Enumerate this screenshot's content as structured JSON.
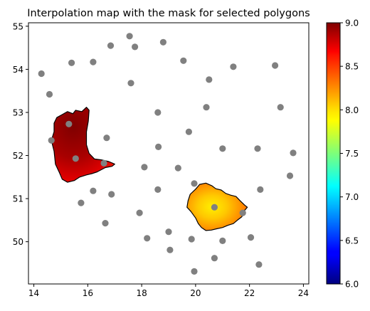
{
  "chart_data": {
    "type": "scatter",
    "title": "Interpolation map with the mask for selected polygons",
    "xlabel": "",
    "ylabel": "",
    "xlim": [
      13.8,
      24.2
    ],
    "ylim": [
      49.02,
      55.08
    ],
    "xticks": [
      14,
      16,
      18,
      20,
      22,
      24
    ],
    "yticks": [
      50,
      51,
      52,
      53,
      54,
      55
    ],
    "grid": false,
    "point_color": "#808080",
    "points": [
      {
        "x": 14.28,
        "y": 53.9
      },
      {
        "x": 14.58,
        "y": 53.42
      },
      {
        "x": 15.4,
        "y": 54.15
      },
      {
        "x": 16.2,
        "y": 54.17
      },
      {
        "x": 16.85,
        "y": 54.55
      },
      {
        "x": 17.55,
        "y": 54.77
      },
      {
        "x": 17.75,
        "y": 54.52
      },
      {
        "x": 18.8,
        "y": 54.63
      },
      {
        "x": 19.55,
        "y": 54.2
      },
      {
        "x": 21.4,
        "y": 54.06
      },
      {
        "x": 22.95,
        "y": 54.09
      },
      {
        "x": 17.6,
        "y": 53.68
      },
      {
        "x": 20.5,
        "y": 53.76
      },
      {
        "x": 18.6,
        "y": 53.0
      },
      {
        "x": 20.4,
        "y": 53.12
      },
      {
        "x": 23.15,
        "y": 53.12
      },
      {
        "x": 15.3,
        "y": 52.73
      },
      {
        "x": 16.7,
        "y": 52.41
      },
      {
        "x": 19.75,
        "y": 52.55
      },
      {
        "x": 14.65,
        "y": 52.35
      },
      {
        "x": 18.62,
        "y": 52.2
      },
      {
        "x": 21.0,
        "y": 52.16
      },
      {
        "x": 22.3,
        "y": 52.16
      },
      {
        "x": 23.62,
        "y": 52.06
      },
      {
        "x": 15.55,
        "y": 51.93
      },
      {
        "x": 16.6,
        "y": 51.82
      },
      {
        "x": 18.1,
        "y": 51.73
      },
      {
        "x": 19.35,
        "y": 51.71
      },
      {
        "x": 23.5,
        "y": 51.53
      },
      {
        "x": 19.95,
        "y": 51.35
      },
      {
        "x": 16.2,
        "y": 51.18
      },
      {
        "x": 16.88,
        "y": 51.1
      },
      {
        "x": 18.6,
        "y": 51.21
      },
      {
        "x": 22.4,
        "y": 51.21
      },
      {
        "x": 15.75,
        "y": 50.9
      },
      {
        "x": 20.7,
        "y": 50.8
      },
      {
        "x": 17.92,
        "y": 50.67
      },
      {
        "x": 21.75,
        "y": 50.67
      },
      {
        "x": 16.65,
        "y": 50.43
      },
      {
        "x": 18.2,
        "y": 50.08
      },
      {
        "x": 19.0,
        "y": 50.23
      },
      {
        "x": 19.85,
        "y": 50.06
      },
      {
        "x": 21.0,
        "y": 50.02
      },
      {
        "x": 22.05,
        "y": 50.1
      },
      {
        "x": 19.05,
        "y": 49.81
      },
      {
        "x": 20.7,
        "y": 49.62
      },
      {
        "x": 22.35,
        "y": 49.47
      },
      {
        "x": 19.95,
        "y": 49.31
      }
    ],
    "masked_regions": [
      {
        "value_range": [
          8.6,
          9.0
        ],
        "polygon": [
          [
            14.85,
            52.88
          ],
          [
            15.05,
            52.95
          ],
          [
            15.25,
            53.02
          ],
          [
            15.45,
            52.97
          ],
          [
            15.55,
            53.05
          ],
          [
            15.78,
            53.02
          ],
          [
            15.95,
            53.12
          ],
          [
            16.05,
            53.05
          ],
          [
            16.02,
            52.8
          ],
          [
            15.95,
            52.55
          ],
          [
            15.95,
            52.25
          ],
          [
            16.05,
            52.05
          ],
          [
            16.25,
            51.92
          ],
          [
            16.5,
            51.9
          ],
          [
            16.78,
            51.86
          ],
          [
            17.0,
            51.8
          ],
          [
            16.9,
            51.75
          ],
          [
            16.65,
            51.72
          ],
          [
            16.35,
            51.62
          ],
          [
            16.15,
            51.58
          ],
          [
            15.95,
            51.55
          ],
          [
            15.7,
            51.5
          ],
          [
            15.5,
            51.42
          ],
          [
            15.25,
            51.38
          ],
          [
            15.05,
            51.45
          ],
          [
            14.95,
            51.6
          ],
          [
            14.8,
            51.8
          ],
          [
            14.75,
            52.1
          ],
          [
            14.65,
            52.35
          ],
          [
            14.75,
            52.55
          ],
          [
            14.75,
            52.75
          ]
        ]
      },
      {
        "value_range": [
          7.9,
          8.6
        ],
        "polygon": [
          [
            19.8,
            51.1
          ],
          [
            20.0,
            51.22
          ],
          [
            20.15,
            51.33
          ],
          [
            20.38,
            51.36
          ],
          [
            20.6,
            51.3
          ],
          [
            20.75,
            51.23
          ],
          [
            20.95,
            51.2
          ],
          [
            21.12,
            51.12
          ],
          [
            21.3,
            51.08
          ],
          [
            21.5,
            51.05
          ],
          [
            21.65,
            50.95
          ],
          [
            21.82,
            50.85
          ],
          [
            21.92,
            50.8
          ],
          [
            21.78,
            50.7
          ],
          [
            21.72,
            50.58
          ],
          [
            21.55,
            50.5
          ],
          [
            21.4,
            50.42
          ],
          [
            21.2,
            50.38
          ],
          [
            21.0,
            50.33
          ],
          [
            20.78,
            50.3
          ],
          [
            20.58,
            50.27
          ],
          [
            20.38,
            50.26
          ],
          [
            20.22,
            50.33
          ],
          [
            20.1,
            50.42
          ],
          [
            20.0,
            50.55
          ],
          [
            19.83,
            50.7
          ],
          [
            19.68,
            50.8
          ],
          [
            19.72,
            50.95
          ]
        ]
      }
    ],
    "colorbar": {
      "colormap": "jet",
      "min": 6.0,
      "max": 9.0,
      "ticks": [
        "6.0",
        "6.5",
        "7.0",
        "7.5",
        "8.0",
        "8.5",
        "9.0"
      ]
    }
  }
}
